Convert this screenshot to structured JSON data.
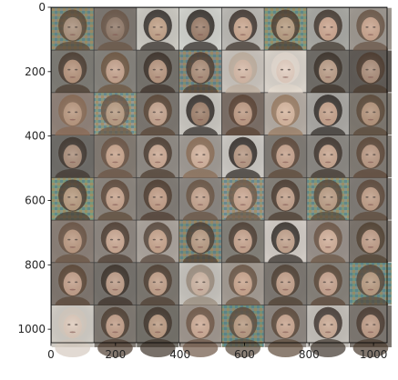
{
  "figure": {
    "grid": {
      "rows": 8,
      "cols": 8,
      "tile_size": 130,
      "pad": 2
    },
    "x_axis": {
      "range": [
        0,
        1042
      ],
      "ticks": [
        0,
        200,
        400,
        600,
        800,
        1000
      ],
      "tick_labels": [
        "0",
        "200",
        "400",
        "600",
        "800",
        "1000"
      ]
    },
    "y_axis": {
      "range": [
        0,
        1042
      ],
      "ticks": [
        0,
        200,
        400,
        600,
        800,
        1000
      ],
      "tick_labels": [
        "0",
        "200",
        "400",
        "600",
        "800",
        "1000"
      ]
    },
    "tiles": [
      {
        "bg": "#8a8e82",
        "face": "#a78d78",
        "hair": "#5a4634",
        "noise": true
      },
      {
        "bg": "#7c7670",
        "face": "#8f7766",
        "hair": "#6b5645",
        "noise": false
      },
      {
        "bg": "#c9c7c0",
        "face": "#c09f85",
        "hair": "#2e2824",
        "noise": false
      },
      {
        "bg": "#cfd0cb",
        "face": "#9a7b67",
        "hair": "#2a2420",
        "noise": false
      },
      {
        "bg": "#b9b7b2",
        "face": "#c8a48c",
        "hair": "#3a2f28",
        "noise": false
      },
      {
        "bg": "#8a9a88",
        "face": "#b59a7e",
        "hair": "#4d3b2d",
        "noise": true
      },
      {
        "bg": "#a7a7a2",
        "face": "#caa38c",
        "hair": "#3f342c",
        "noise": false
      },
      {
        "bg": "#9d9790",
        "face": "#c7a18a",
        "hair": "#6a5444",
        "noise": false
      },
      {
        "bg": "#7c7a74",
        "face": "#b39078",
        "hair": "#4a3a2e",
        "noise": false
      },
      {
        "bg": "#85827c",
        "face": "#c3a08a",
        "hair": "#6e563f",
        "noise": false
      },
      {
        "bg": "#75726c",
        "face": "#b5937c",
        "hair": "#3a2e26",
        "noise": false
      },
      {
        "bg": "#8b8a84",
        "face": "#a88a75",
        "hair": "#4b3a2f",
        "noise": true
      },
      {
        "bg": "#c8c2bb",
        "face": "#d4b7a4",
        "hair": "#bfae9c",
        "noise": false
      },
      {
        "bg": "#d8d2ca",
        "face": "#e2cdbf",
        "hair": "#e8ddd2",
        "noise": false
      },
      {
        "bg": "#6f6c67",
        "face": "#b89a84",
        "hair": "#3a2f27",
        "noise": false
      },
      {
        "bg": "#5f5a55",
        "face": "#a88a76",
        "hair": "#4c3a2d",
        "noise": false
      },
      {
        "bg": "#8f8178",
        "face": "#b7957c",
        "hair": "#8a6a52",
        "noise": false
      },
      {
        "bg": "#9c9d92",
        "face": "#b69a80",
        "hair": "#6a5646",
        "noise": true
      },
      {
        "bg": "#7a756f",
        "face": "#c2a18b",
        "hair": "#5a4535",
        "noise": false
      },
      {
        "bg": "#c7c4be",
        "face": "#9c7d68",
        "hair": "#2c2622",
        "noise": false
      },
      {
        "bg": "#7b6e66",
        "face": "#bb9780",
        "hair": "#5a4232",
        "noise": false
      },
      {
        "bg": "#b3aba3",
        "face": "#d5b49c",
        "hair": "#9a7a60",
        "noise": false
      },
      {
        "bg": "#a9a7a3",
        "face": "#c39f88",
        "hair": "#2e2824",
        "noise": false
      },
      {
        "bg": "#7d776f",
        "face": "#b29178",
        "hair": "#5a4736",
        "noise": false
      },
      {
        "bg": "#6e6c68",
        "face": "#a88b77",
        "hair": "#3e342d",
        "noise": false
      },
      {
        "bg": "#827a72",
        "face": "#c6a189",
        "hair": "#6c5443",
        "noise": false
      },
      {
        "bg": "#8f8a84",
        "face": "#c9a690",
        "hair": "#4b3a2e",
        "noise": false
      },
      {
        "bg": "#9f9993",
        "face": "#d1b09a",
        "hair": "#8c6c54",
        "noise": false
      },
      {
        "bg": "#c9c6c1",
        "face": "#b49580",
        "hair": "#2b2521",
        "noise": false
      },
      {
        "bg": "#7f7a74",
        "face": "#c4a08a",
        "hair": "#5e4838",
        "noise": false
      },
      {
        "bg": "#8a8782",
        "face": "#c6a38c",
        "hair": "#3d332b",
        "noise": false
      },
      {
        "bg": "#807a73",
        "face": "#b89680",
        "hair": "#5c4535",
        "noise": false
      },
      {
        "bg": "#8e9c86",
        "face": "#b5987c",
        "hair": "#4a3b2f",
        "noise": true
      },
      {
        "bg": "#8b857e",
        "face": "#c5a18a",
        "hair": "#5e4838",
        "noise": false
      },
      {
        "bg": "#807b75",
        "face": "#c09b84",
        "hair": "#4d3b2e",
        "noise": false
      },
      {
        "bg": "#8a8580",
        "face": "#c2a08a",
        "hair": "#6a5342",
        "noise": false
      },
      {
        "bg": "#9e9a94",
        "face": "#c8a48e",
        "hair": "#6e5846",
        "noise": true
      },
      {
        "bg": "#848079",
        "face": "#c09e88",
        "hair": "#4a3a2e",
        "noise": false
      },
      {
        "bg": "#8e9a8a",
        "face": "#b99b82",
        "hair": "#5a4838",
        "noise": true
      },
      {
        "bg": "#7f7a75",
        "face": "#bd9a83",
        "hair": "#5d4838",
        "noise": false
      },
      {
        "bg": "#8a7f77",
        "face": "#b9967e",
        "hair": "#6a5242",
        "noise": false
      },
      {
        "bg": "#8d8680",
        "face": "#c8a58f",
        "hair": "#4d3c30",
        "noise": false
      },
      {
        "bg": "#aaa39c",
        "face": "#c5a189",
        "hair": "#56453a",
        "noise": false
      },
      {
        "bg": "#8a8a7e",
        "face": "#b59880",
        "hair": "#4b3c31",
        "noise": true
      },
      {
        "bg": "#838079",
        "face": "#c4a08a",
        "hair": "#4d3d31",
        "noise": false
      },
      {
        "bg": "#d0cac4",
        "face": "#c0a08a",
        "hair": "#2e2823",
        "noise": false
      },
      {
        "bg": "#98908a",
        "face": "#cfac96",
        "hair": "#6c5543",
        "noise": false
      },
      {
        "bg": "#7a736c",
        "face": "#bd9a84",
        "hair": "#50402f",
        "noise": false
      },
      {
        "bg": "#7e756e",
        "face": "#c09c86",
        "hair": "#5a4534",
        "noise": false
      },
      {
        "bg": "#75716c",
        "face": "#bb9a85",
        "hair": "#3a2f27",
        "noise": false
      },
      {
        "bg": "#7b766f",
        "face": "#bf9d86",
        "hair": "#4e3d30",
        "noise": false
      },
      {
        "bg": "#c4c1bb",
        "face": "#cbb2a0",
        "hair": "#9a8a7a",
        "noise": false
      },
      {
        "bg": "#a29a92",
        "face": "#c7a28a",
        "hair": "#6a5442",
        "noise": false
      },
      {
        "bg": "#7c7771",
        "face": "#c09d87",
        "hair": "#4f3e31",
        "noise": false
      },
      {
        "bg": "#858079",
        "face": "#c4a08b",
        "hair": "#5b4636",
        "noise": false
      },
      {
        "bg": "#7e938c",
        "face": "#b6987e",
        "hair": "#56473a",
        "noise": true
      },
      {
        "bg": "#cfcbc4",
        "face": "#ddc9ba",
        "hair": "#d6cbc0",
        "noise": false
      },
      {
        "bg": "#7f7972",
        "face": "#bf9b85",
        "hair": "#4e3d30",
        "noise": false
      },
      {
        "bg": "#737069",
        "face": "#b9987f",
        "hair": "#3f332a",
        "noise": false
      },
      {
        "bg": "#9e958d",
        "face": "#cba892",
        "hair": "#6e5644",
        "noise": false
      },
      {
        "bg": "#7f8f86",
        "face": "#b5977e",
        "hair": "#5a4a3c",
        "noise": true
      },
      {
        "bg": "#8d8680",
        "face": "#c6a28c",
        "hair": "#5c4838",
        "noise": false
      },
      {
        "bg": "#c2beb8",
        "face": "#c9a892",
        "hair": "#3d332b",
        "noise": false
      },
      {
        "bg": "#7c7670",
        "face": "#bc9983",
        "hair": "#4a3a2e",
        "noise": false
      }
    ]
  }
}
